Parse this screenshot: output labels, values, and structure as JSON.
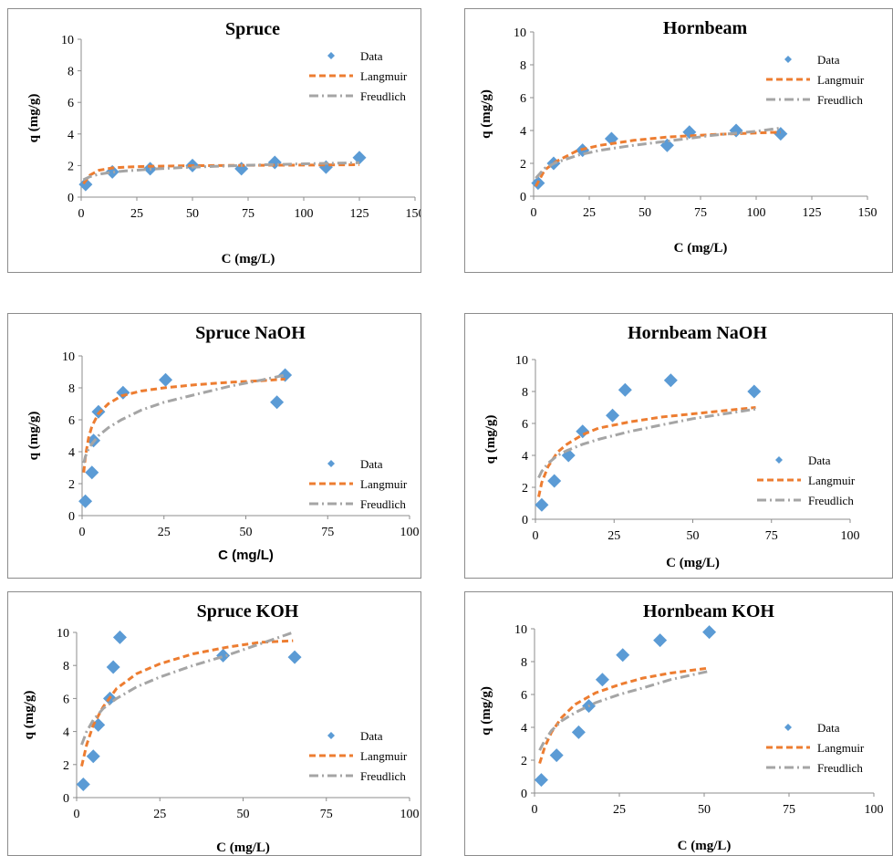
{
  "chart_data": [
    {
      "type": "scatter",
      "title": "Spruce",
      "xlabel": "C (mg/L)",
      "ylabel": "q (mg/g)",
      "xlim": [
        0,
        150
      ],
      "ylim": [
        0,
        10
      ],
      "xticks": [
        "0",
        "25",
        "50",
        "75",
        "100",
        "125",
        "150"
      ],
      "yticks": [
        "0",
        "2",
        "4",
        "6",
        "8",
        "10"
      ],
      "legend": [
        "Data",
        "Langmuir",
        "Freudlich"
      ],
      "legend_position": "top-right",
      "series": [
        {
          "name": "Data",
          "style": "markers",
          "x": [
            2,
            14,
            31,
            50,
            72,
            87,
            110,
            125
          ],
          "y": [
            0.8,
            1.6,
            1.8,
            2.0,
            1.8,
            2.2,
            1.9,
            2.5
          ]
        },
        {
          "name": "Langmuir",
          "style": "dashed",
          "x": [
            1,
            4,
            8,
            14,
            20,
            30,
            45,
            60,
            80,
            100,
            125
          ],
          "y": [
            0.85,
            1.4,
            1.7,
            1.85,
            1.9,
            1.95,
            1.98,
            2.0,
            2.02,
            2.03,
            2.05
          ]
        },
        {
          "name": "Freudlich",
          "style": "dashdot",
          "x": [
            1,
            4,
            8,
            14,
            20,
            30,
            45,
            60,
            80,
            100,
            125
          ],
          "y": [
            1.1,
            1.3,
            1.45,
            1.58,
            1.66,
            1.76,
            1.87,
            1.95,
            2.04,
            2.11,
            2.18
          ]
        }
      ]
    },
    {
      "type": "scatter",
      "title": "Hornbeam",
      "xlabel": "C (mg/L)",
      "ylabel": "q (mg/g)",
      "xlim": [
        0,
        150
      ],
      "ylim": [
        0,
        10
      ],
      "xticks": [
        "0",
        "25",
        "50",
        "75",
        "100",
        "125",
        "150"
      ],
      "yticks": [
        "0",
        "2",
        "4",
        "6",
        "8",
        "10"
      ],
      "legend": [
        "Data",
        "Langmuir",
        "Freudlich"
      ],
      "legend_position": "top-right",
      "series": [
        {
          "name": "Data",
          "style": "markers",
          "x": [
            2,
            9,
            22,
            35,
            60,
            70,
            91,
            111
          ],
          "y": [
            0.8,
            2.0,
            2.8,
            3.5,
            3.1,
            3.9,
            4.0,
            3.8
          ]
        },
        {
          "name": "Langmuir",
          "style": "dashed",
          "x": [
            1,
            5,
            10,
            20,
            30,
            45,
            60,
            80,
            100,
            111
          ],
          "y": [
            0.6,
            1.6,
            2.1,
            2.8,
            3.1,
            3.4,
            3.6,
            3.75,
            3.85,
            3.9
          ]
        },
        {
          "name": "Freudlich",
          "style": "dashdot",
          "x": [
            1,
            5,
            10,
            20,
            30,
            45,
            60,
            80,
            100,
            111
          ],
          "y": [
            1.1,
            1.7,
            2.05,
            2.5,
            2.8,
            3.1,
            3.35,
            3.7,
            3.95,
            4.15
          ]
        }
      ]
    },
    {
      "type": "scatter",
      "title": "Spruce NaOH",
      "xlabel": "C (mg/L)",
      "ylabel": "q (mg/g)",
      "xlim": [
        0,
        100
      ],
      "ylim": [
        0,
        10
      ],
      "xticks": [
        "0",
        "25",
        "50",
        "75",
        "100"
      ],
      "yticks": [
        "0",
        "2",
        "4",
        "6",
        "8",
        "10"
      ],
      "legend": [
        "Data",
        "Langmuir",
        "Freudlich"
      ],
      "legend_position": "bottom-right",
      "series": [
        {
          "name": "Data",
          "style": "markers",
          "x": [
            1,
            3,
            3.5,
            5,
            12.5,
            25.5,
            59.5,
            62
          ],
          "y": [
            0.9,
            2.7,
            4.7,
            6.5,
            7.7,
            8.5,
            7.1,
            8.8
          ]
        },
        {
          "name": "Langmuir",
          "style": "dashed",
          "x": [
            0.5,
            1,
            2,
            3,
            5,
            8,
            12,
            18,
            25,
            35,
            45,
            55,
            62
          ],
          "y": [
            2.7,
            3.7,
            4.9,
            5.6,
            6.4,
            7.0,
            7.5,
            7.8,
            8.0,
            8.2,
            8.35,
            8.45,
            8.55
          ]
        },
        {
          "name": "Freudlich",
          "style": "dashdot",
          "x": [
            0.5,
            1,
            2,
            3,
            5,
            8,
            12,
            18,
            25,
            35,
            45,
            55,
            62
          ],
          "y": [
            3.3,
            3.7,
            4.2,
            4.5,
            5.0,
            5.5,
            6.0,
            6.6,
            7.1,
            7.6,
            8.1,
            8.5,
            8.8
          ]
        }
      ]
    },
    {
      "type": "scatter",
      "title": "Hornbeam NaOH",
      "xlabel": "C (mg/L)",
      "ylabel": "q (mg/g)",
      "xlim": [
        0,
        100
      ],
      "ylim": [
        0,
        10
      ],
      "xticks": [
        "0",
        "25",
        "50",
        "75",
        "100"
      ],
      "yticks": [
        "0",
        "2",
        "4",
        "6",
        "8",
        "10"
      ],
      "legend": [
        "Data",
        "Langmuir",
        "Freudlich"
      ],
      "legend_position": "bottom-right",
      "series": [
        {
          "name": "Data",
          "style": "markers",
          "x": [
            2,
            6,
            10.5,
            15,
            24.5,
            28.5,
            43,
            69.5
          ],
          "y": [
            0.9,
            2.4,
            4.0,
            5.5,
            6.5,
            8.1,
            8.7,
            8.0
          ]
        },
        {
          "name": "Langmuir",
          "style": "dashed",
          "x": [
            1,
            2,
            4,
            7,
            10,
            15,
            20,
            30,
            40,
            50,
            60,
            70
          ],
          "y": [
            1.4,
            2.3,
            3.3,
            4.2,
            4.7,
            5.3,
            5.7,
            6.1,
            6.4,
            6.6,
            6.8,
            7.0
          ]
        },
        {
          "name": "Freudlich",
          "style": "dashdot",
          "x": [
            1,
            2,
            4,
            7,
            10,
            15,
            20,
            30,
            40,
            50,
            60,
            70
          ],
          "y": [
            2.6,
            3.0,
            3.5,
            4.0,
            4.3,
            4.7,
            5.0,
            5.5,
            5.9,
            6.3,
            6.6,
            6.9
          ]
        }
      ]
    },
    {
      "type": "scatter",
      "title": "Spruce KOH",
      "xlabel": "C (mg/L)",
      "ylabel": "q (mg/g)",
      "xlim": [
        0,
        100
      ],
      "ylim": [
        0,
        10
      ],
      "xticks": [
        "0",
        "25",
        "50",
        "75",
        "100"
      ],
      "yticks": [
        "0",
        "2",
        "4",
        "6",
        "8",
        "10"
      ],
      "legend": [
        "Data",
        "Langmuir",
        "Freudlich"
      ],
      "legend_position": "bottom-right",
      "series": [
        {
          "name": "Data",
          "style": "markers",
          "x": [
            2,
            5,
            6.5,
            10,
            11,
            13,
            44,
            65.5
          ],
          "y": [
            0.8,
            2.5,
            4.4,
            6.0,
            7.9,
            9.7,
            8.6,
            8.5
          ]
        },
        {
          "name": "Langmuir",
          "style": "dashed",
          "x": [
            1.5,
            3,
            5,
            8,
            12,
            18,
            25,
            35,
            45,
            55,
            65
          ],
          "y": [
            1.9,
            3.2,
            4.4,
            5.5,
            6.6,
            7.5,
            8.1,
            8.7,
            9.1,
            9.4,
            9.5
          ]
        },
        {
          "name": "Freudlich",
          "style": "dashdot",
          "x": [
            1.5,
            3,
            5,
            8,
            12,
            18,
            25,
            35,
            45,
            55,
            65
          ],
          "y": [
            3.2,
            4.0,
            4.7,
            5.4,
            6.0,
            6.7,
            7.3,
            8.0,
            8.6,
            9.3,
            10.0
          ]
        }
      ]
    },
    {
      "type": "scatter",
      "title": "Hornbeam KOH",
      "xlabel": "C (mg/L)",
      "ylabel": "q (mg/g)",
      "xlim": [
        0,
        100
      ],
      "ylim": [
        0,
        10
      ],
      "xticks": [
        "0",
        "25",
        "50",
        "75",
        "100"
      ],
      "yticks": [
        "0",
        "2",
        "4",
        "6",
        "8",
        "10"
      ],
      "legend": [
        "Data",
        "Langmuir",
        "Freudlich"
      ],
      "legend_position": "bottom-right",
      "series": [
        {
          "name": "Data",
          "style": "markers",
          "x": [
            2,
            6.5,
            13,
            16,
            20,
            26,
            37,
            51.5
          ],
          "y": [
            0.8,
            2.3,
            3.7,
            5.3,
            6.9,
            8.4,
            9.3,
            9.8
          ]
        },
        {
          "name": "Langmuir",
          "style": "dashed",
          "x": [
            1.5,
            3,
            5,
            8,
            12,
            18,
            25,
            32,
            40,
            51
          ],
          "y": [
            1.8,
            2.8,
            3.7,
            4.6,
            5.4,
            6.1,
            6.6,
            7.0,
            7.3,
            7.6
          ]
        },
        {
          "name": "Freudlich",
          "style": "dashdot",
          "x": [
            1.5,
            3,
            5,
            8,
            12,
            18,
            25,
            32,
            40,
            51
          ],
          "y": [
            2.6,
            3.2,
            3.8,
            4.4,
            4.9,
            5.5,
            6.0,
            6.4,
            6.9,
            7.4
          ]
        }
      ]
    }
  ],
  "colors": {
    "data": "#5b9bd5",
    "langmuir": "#ed7d31",
    "freudlich": "#a5a5a5",
    "axis": "#8c8c8c",
    "text": "#000000"
  }
}
